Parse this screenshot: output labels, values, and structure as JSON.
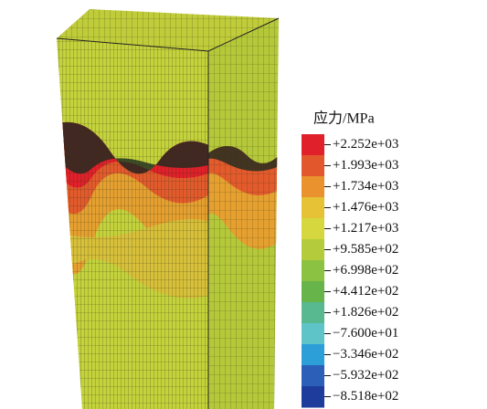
{
  "legend": {
    "title": "应力/MPa",
    "labels": [
      "+2.252e+03",
      "+1.993e+03",
      "+1.734e+03",
      "+1.476e+03",
      "+1.217e+03",
      "+9.585e+02",
      "+6.998e+02",
      "+4.412e+02",
      "+1.826e+02",
      "−7.600e+01",
      "−3.346e+02",
      "−5.932e+02",
      "−8.518e+02"
    ],
    "colors": [
      "#e0202a",
      "#e2582c",
      "#e9922e",
      "#e5c236",
      "#d6d63e",
      "#b4cc3c",
      "#8cc242",
      "#66b44a",
      "#58b890",
      "#5ec4c8",
      "#2c9ed8",
      "#2c60b8",
      "#1e3c9c"
    ]
  }
}
